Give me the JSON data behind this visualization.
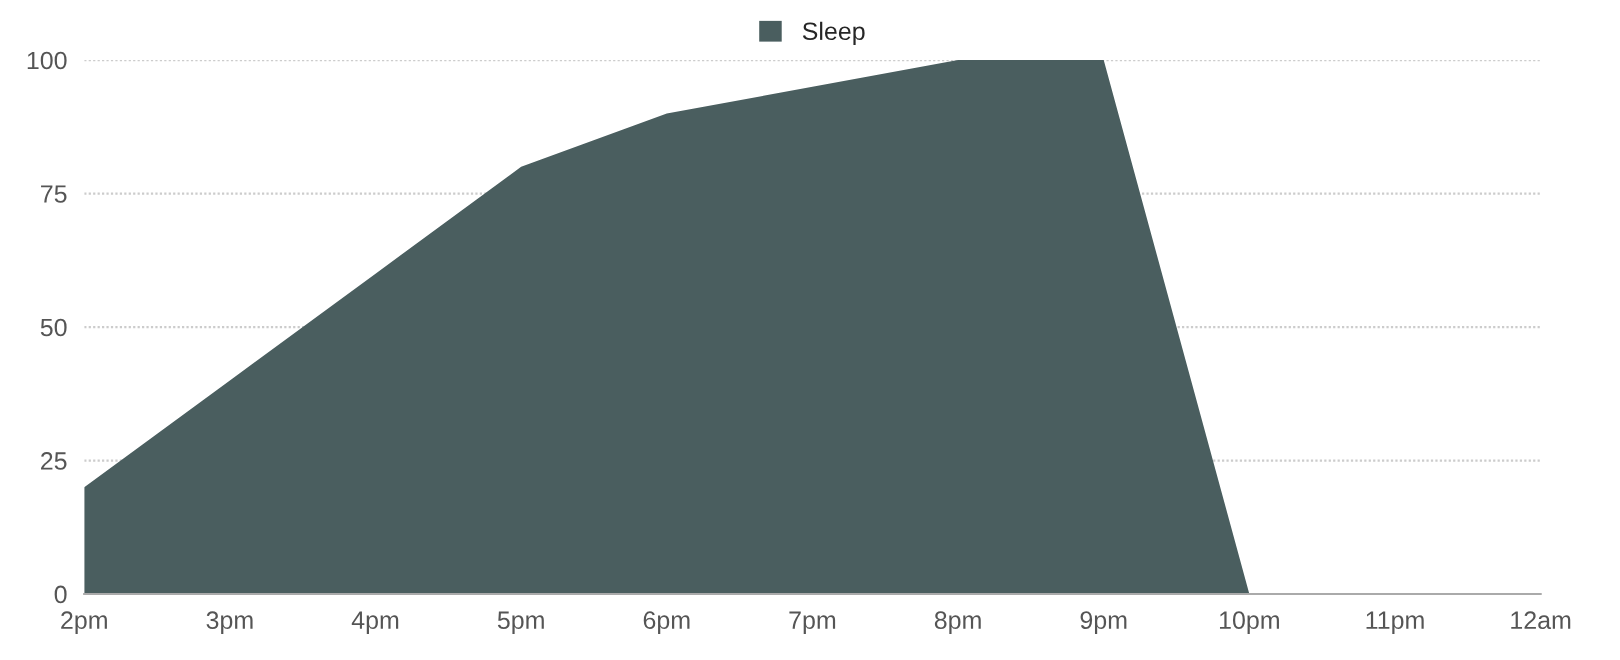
{
  "chart_data": {
    "type": "area",
    "categories": [
      "2pm",
      "3pm",
      "4pm",
      "5pm",
      "6pm",
      "7pm",
      "8pm",
      "9pm",
      "10pm",
      "11pm",
      "12am"
    ],
    "series": [
      {
        "name": "Sleep",
        "color": "#4a5e5f",
        "values": [
          20,
          40,
          60,
          80,
          90,
          95,
          100,
          100,
          0,
          0,
          0
        ]
      }
    ],
    "ylim": [
      0,
      100
    ],
    "yticks": [
      0,
      25,
      50,
      75,
      100
    ],
    "grid": "y",
    "legend": "top"
  }
}
